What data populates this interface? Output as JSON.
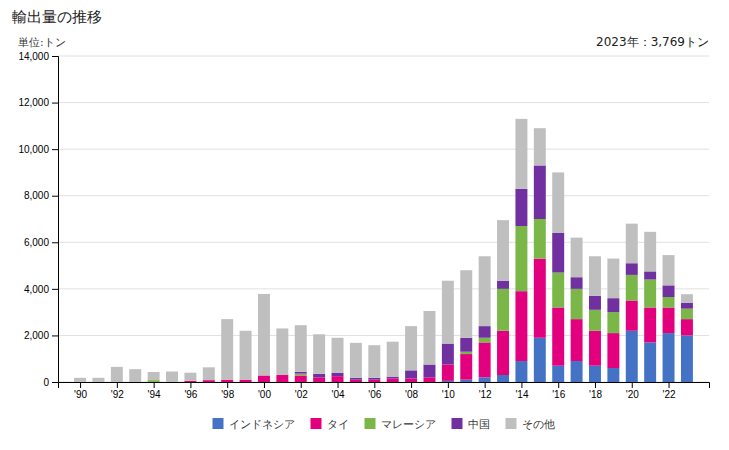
{
  "chart_data": {
    "type": "bar",
    "stacked": true,
    "title": "輸出量の推移",
    "y_label": "単位:トン",
    "annotations": [
      "2023年：3,769トン"
    ],
    "x": [
      1990,
      1991,
      1992,
      1993,
      1994,
      1995,
      1996,
      1997,
      1998,
      1999,
      2000,
      2001,
      2002,
      2003,
      2004,
      2005,
      2006,
      2007,
      2008,
      2009,
      2010,
      2011,
      2012,
      2013,
      2014,
      2015,
      2016,
      2017,
      2018,
      2019,
      2020,
      2021,
      2022,
      2023
    ],
    "series": [
      {
        "name": "インドネシア",
        "color": "#4472C4",
        "values": [
          0,
          0,
          0,
          0,
          0,
          0,
          0,
          0,
          0,
          0,
          0,
          0,
          0,
          0,
          0,
          0,
          0,
          0,
          0,
          0,
          50,
          100,
          200,
          300,
          900,
          1900,
          700,
          900,
          700,
          600,
          2200,
          1700,
          2100,
          2000
        ]
      },
      {
        "name": "タイ",
        "color": "#E2007F",
        "values": [
          0,
          0,
          0,
          0,
          0,
          0,
          50,
          80,
          100,
          100,
          280,
          300,
          280,
          200,
          250,
          100,
          100,
          150,
          150,
          200,
          700,
          1100,
          1500,
          1900,
          3000,
          3400,
          2500,
          1800,
          1500,
          1500,
          1300,
          1500,
          1100,
          700
        ]
      },
      {
        "name": "マレーシア",
        "color": "#7AB648",
        "values": [
          0,
          0,
          0,
          0,
          80,
          0,
          0,
          0,
          0,
          0,
          0,
          0,
          80,
          0,
          0,
          0,
          0,
          0,
          0,
          0,
          0,
          100,
          200,
          1800,
          2800,
          1700,
          1500,
          1300,
          900,
          900,
          1100,
          1200,
          450,
          450
        ]
      },
      {
        "name": "中国",
        "color": "#7030A0",
        "values": [
          0,
          0,
          0,
          0,
          0,
          0,
          0,
          0,
          0,
          0,
          0,
          0,
          80,
          150,
          150,
          80,
          80,
          80,
          350,
          550,
          900,
          600,
          500,
          350,
          1600,
          2300,
          1700,
          500,
          600,
          600,
          500,
          350,
          500,
          250
        ]
      },
      {
        "name": "その他",
        "color": "#BFBFBF",
        "values": [
          180,
          180,
          650,
          550,
          350,
          450,
          350,
          550,
          2600,
          2100,
          3500,
          2000,
          2000,
          1700,
          1500,
          1500,
          1400,
          1500,
          1900,
          2300,
          2700,
          2900,
          3000,
          2600,
          3000,
          1600,
          2600,
          1700,
          1700,
          1700,
          1700,
          1700,
          1300,
          370
        ]
      }
    ],
    "xlim": [
      1988.8,
      2024.2
    ],
    "xticks": [
      {
        "value": 1990,
        "label": "'90"
      },
      {
        "value": 1992,
        "label": "'92"
      },
      {
        "value": 1994,
        "label": "'94"
      },
      {
        "value": 1996,
        "label": "'96"
      },
      {
        "value": 1998,
        "label": "'98"
      },
      {
        "value": 2000,
        "label": "'00"
      },
      {
        "value": 2002,
        "label": "'02"
      },
      {
        "value": 2004,
        "label": "'04"
      },
      {
        "value": 2006,
        "label": "'06"
      },
      {
        "value": 2008,
        "label": "'08"
      },
      {
        "value": 2010,
        "label": "'10"
      },
      {
        "value": 2012,
        "label": "'12"
      },
      {
        "value": 2014,
        "label": "'14"
      },
      {
        "value": 2016,
        "label": "'16"
      },
      {
        "value": 2018,
        "label": "'18"
      },
      {
        "value": 2020,
        "label": "'20"
      },
      {
        "value": 2022,
        "label": "'22"
      }
    ],
    "ylim": [
      0,
      14000
    ],
    "yticks": [
      0,
      {
        "value": 2000,
        "label": "2,000"
      },
      {
        "value": 4000,
        "label": "4,000"
      },
      {
        "value": 6000,
        "label": "6,000"
      },
      {
        "value": 8000,
        "label": "8,000"
      },
      {
        "value": 10000,
        "label": "10,000"
      },
      {
        "value": 12000,
        "label": "12,000"
      },
      {
        "value": 14000,
        "label": "14,000"
      }
    ],
    "grid": true,
    "legend": "bottom"
  }
}
